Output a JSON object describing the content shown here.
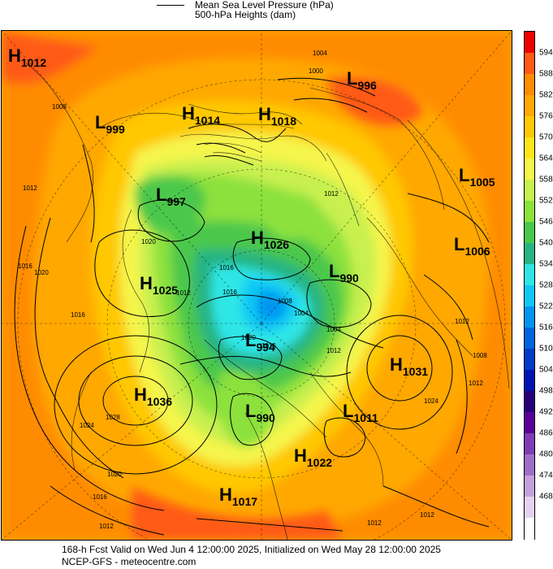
{
  "legend": {
    "line1": "Mean Sea Level Pressure (hPa)",
    "line2": "500-hPa Heights (dam)"
  },
  "footer": {
    "line1": "168-h Fcst Valid on Wed Jun  4 12:00:00 2025, Initialized on Wed May 28 12:00:00 2025",
    "line2": "NCEP-GFS  - meteocentre.com"
  },
  "colorbar": {
    "ticks": [
      "594",
      "588",
      "582",
      "576",
      "570",
      "564",
      "558",
      "552",
      "546",
      "540",
      "534",
      "528",
      "522",
      "516",
      "510",
      "504",
      "498",
      "492",
      "486",
      "480",
      "474",
      "468"
    ],
    "colors": [
      "#ee0000",
      "#ff5a14",
      "#ff8c00",
      "#ffa800",
      "#ffc800",
      "#ffe619",
      "#f5f54b",
      "#c8f050",
      "#8ce13c",
      "#4bc84b",
      "#28b482",
      "#2ee6e6",
      "#0fc8f5",
      "#0096f0",
      "#0064dc",
      "#003cc8",
      "#0014b4",
      "#28007a",
      "#5a0096",
      "#7f3cb4",
      "#a06ec8",
      "#c4a0dc",
      "#e6d2f0",
      "#ffffff"
    ]
  },
  "pressure_centers": [
    {
      "type": "H",
      "value": "1012"
    },
    {
      "type": "L",
      "value": "996"
    },
    {
      "type": "L",
      "value": "999"
    },
    {
      "type": "H",
      "value": "1014"
    },
    {
      "type": "H",
      "value": "1018"
    },
    {
      "type": "L",
      "value": "1005"
    },
    {
      "type": "L",
      "value": "997"
    },
    {
      "type": "H",
      "value": "1026"
    },
    {
      "type": "L",
      "value": "1006"
    },
    {
      "type": "H",
      "value": "1025"
    },
    {
      "type": "L",
      "value": "990"
    },
    {
      "type": "L",
      "value": "994"
    },
    {
      "type": "H",
      "value": "1031"
    },
    {
      "type": "H",
      "value": "1036"
    },
    {
      "type": "L",
      "value": "990"
    },
    {
      "type": "L",
      "value": "1011"
    },
    {
      "type": "H",
      "value": "1022"
    },
    {
      "type": "H",
      "value": "1017"
    }
  ],
  "contour_labels": [
    "1004",
    "1000",
    "1008",
    "1012",
    "1012",
    "1020",
    "1016",
    "1020",
    "1016",
    "1012",
    "1016",
    "1024",
    "1028",
    "1020",
    "1016",
    "1012",
    "1012",
    "1016",
    "1020",
    "1024",
    "1012",
    "1004",
    "1008",
    "1012",
    "1012",
    "1008",
    "1004",
    "1016",
    "1012"
  ]
}
